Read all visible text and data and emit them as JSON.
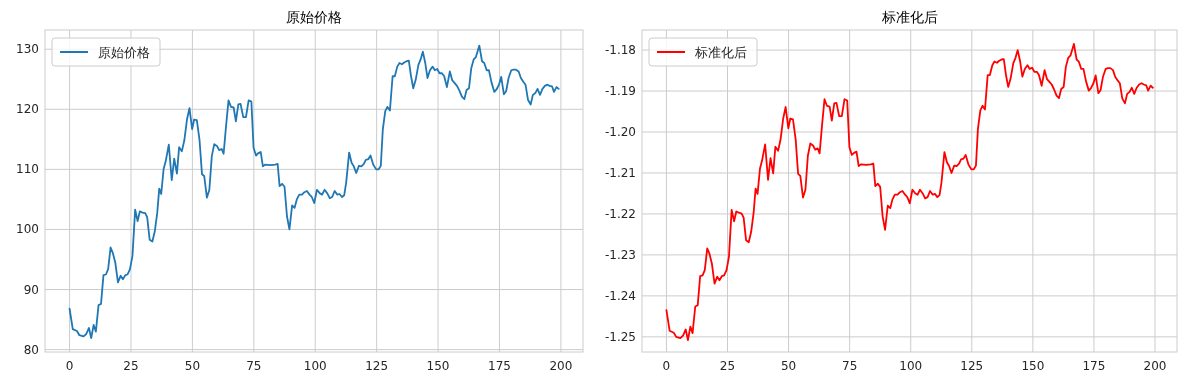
{
  "chart_data": [
    {
      "type": "line",
      "title": "原始价格",
      "x": [
        0,
        1.3,
        3,
        4,
        5.7,
        6.8,
        7.9,
        8.8,
        9.8,
        10.7,
        11.8,
        12.8,
        13.8,
        14.8,
        15.7,
        16.7,
        17.6,
        18.6,
        19.7,
        20.8,
        21.7,
        22.7,
        23.6,
        24.6,
        25.6,
        26.7,
        27.7,
        28.6,
        29.7,
        30.8,
        31.6,
        32.6,
        33.7,
        34.7,
        35.7,
        36.5,
        37.3,
        38.3,
        39.1,
        40.4,
        41.6,
        42.6,
        43.7,
        44.6,
        45.7,
        46.7,
        47.8,
        48.8,
        49.9,
        50.7,
        51.8,
        52.9,
        53.9,
        54.8,
        55.9,
        56.9,
        57.9,
        58.9,
        60.0,
        60.9,
        61.9,
        62.7,
        63.7,
        64.7,
        65.7,
        66.8,
        67.7,
        68.7,
        69.6,
        70.7,
        71.8,
        72.9,
        74.0,
        74.9,
        75.9,
        76.8,
        77.8,
        78.7,
        79.7,
        81.7,
        83.7,
        84.7,
        85.5,
        86.5,
        87.5,
        88.5,
        89.5,
        90.6,
        91.6,
        92.5,
        93.5,
        94.6,
        95.6,
        96.6,
        97.7,
        98.6,
        99.6,
        100.7,
        101.9,
        102.8,
        103.8,
        104.9,
        105.9,
        106.9,
        107.9,
        109.0,
        109.9,
        110.9,
        111.8,
        112.6,
        113.8,
        114.8,
        115.7,
        116.7,
        117.8,
        118.8,
        119.8,
        120.6,
        121.6,
        122.5,
        123.6,
        124.8,
        125.8,
        126.7,
        127.5,
        128.5,
        129.4,
        130.4,
        131.5,
        132.4,
        133.4,
        134.3,
        135.3,
        136.2,
        137.2,
        138.1,
        139.0,
        139.9,
        140.9,
        142.0,
        142.9,
        143.8,
        144.8,
        145.7,
        146.7,
        147.8,
        148.7,
        149.7,
        150.6,
        151.6,
        152.5,
        153.6,
        154.8,
        155.8,
        156.7,
        157.7,
        158.6,
        159.7,
        160.7,
        161.6,
        162.6,
        163.5,
        164.5,
        165.4,
        166.8,
        167.9,
        168.8,
        169.8,
        170.7,
        171.8,
        172.9,
        173.8,
        174.8,
        175.7,
        176.8,
        177.7,
        178.7,
        179.8,
        180.7,
        181.7,
        182.8,
        183.7,
        184.7,
        185.6,
        186.6,
        187.7,
        188.6,
        189.6,
        190.5,
        191.5,
        192.5,
        193.5,
        194.5,
        195.4,
        196.4,
        197.2,
        198.2,
        199.1
      ],
      "series": [
        {
          "name": "原始价格",
          "color": "#1f77b4",
          "values": [
            86.8,
            83.4,
            83.1,
            82.4,
            82.2,
            82.6,
            83.6,
            81.9,
            84.1,
            83.0,
            87.4,
            87.6,
            92.4,
            92.5,
            93.4,
            97.0,
            96.1,
            94.5,
            91.2,
            92.3,
            91.7,
            92.4,
            92.5,
            93.4,
            95.6,
            103.3,
            101.4,
            103.0,
            102.8,
            102.7,
            102.0,
            98.3,
            98.0,
            99.7,
            102.8,
            106.8,
            105.9,
            110.1,
            111.3,
            114.1,
            108.2,
            111.8,
            109.3,
            113.7,
            113.0,
            114.8,
            118.3,
            120.2,
            116.7,
            118.3,
            118.2,
            114.9,
            109.2,
            108.9,
            105.3,
            106.6,
            112.2,
            114.2,
            113.9,
            113.2,
            113.4,
            112.6,
            117.2,
            121.5,
            120.4,
            120.3,
            118.0,
            120.8,
            120.9,
            118.7,
            118.7,
            121.5,
            121.3,
            113.6,
            112.3,
            112.7,
            112.9,
            110.5,
            110.8,
            110.7,
            110.8,
            110.9,
            107.2,
            107.6,
            107.1,
            102.2,
            100.0,
            104.0,
            103.6,
            105.0,
            105.8,
            105.8,
            106.2,
            106.4,
            105.8,
            105.4,
            104.4,
            106.6,
            106.0,
            105.8,
            106.6,
            106.0,
            105.2,
            105.4,
            106.4,
            105.8,
            105.9,
            105.4,
            105.7,
            107.8,
            112.8,
            111.1,
            110.5,
            109.4,
            110.6,
            110.5,
            110.9,
            111.6,
            111.7,
            112.3,
            110.8,
            110.0,
            110.0,
            110.6,
            116.6,
            119.7,
            120.4,
            119.8,
            125.5,
            125.5,
            127.1,
            127.7,
            127.5,
            127.8,
            128.0,
            128.1,
            125.5,
            123.5,
            124.9,
            127.4,
            128.3,
            129.6,
            127.7,
            125.2,
            126.5,
            127.1,
            126.5,
            126.7,
            126.0,
            126.0,
            125.5,
            123.7,
            126.3,
            124.8,
            124.4,
            123.9,
            123.2,
            122.1,
            121.7,
            123.2,
            123.5,
            126.8,
            128.3,
            128.7,
            130.6,
            128.0,
            127.7,
            126.5,
            126.5,
            124.4,
            122.9,
            123.3,
            124.1,
            125.4,
            122.5,
            123.0,
            125.2,
            126.5,
            126.6,
            126.6,
            126.3,
            125.2,
            124.6,
            124.1,
            121.6,
            120.8,
            122.4,
            122.7,
            123.4,
            122.4,
            123.4,
            123.9,
            124.1,
            123.9,
            123.8,
            122.9,
            123.7,
            123.4
          ]
        }
      ],
      "xlim": [
        -10,
        209
      ],
      "xticks": [
        0,
        25,
        50,
        75,
        100,
        125,
        150,
        175,
        200
      ],
      "ylim": [
        79.6,
        133.2
      ],
      "yticks": [
        80,
        90,
        100,
        110,
        120,
        130
      ],
      "grid": true,
      "legend": "top left"
    },
    {
      "type": "line",
      "title": "标准化后",
      "x": [
        0,
        1.3,
        3,
        4,
        5.7,
        6.8,
        7.9,
        8.8,
        9.8,
        10.7,
        11.8,
        12.8,
        13.8,
        14.8,
        15.7,
        16.7,
        17.6,
        18.6,
        19.7,
        20.8,
        21.7,
        22.7,
        23.6,
        24.6,
        25.6,
        26.7,
        27.7,
        28.6,
        29.7,
        30.8,
        31.6,
        32.6,
        33.7,
        34.7,
        35.7,
        36.5,
        37.3,
        38.3,
        39.1,
        40.4,
        41.6,
        42.6,
        43.7,
        44.6,
        45.7,
        46.7,
        47.8,
        48.8,
        49.9,
        50.7,
        51.8,
        52.9,
        53.9,
        54.8,
        55.9,
        56.9,
        57.9,
        58.9,
        60.0,
        60.9,
        61.9,
        62.7,
        63.7,
        64.7,
        65.7,
        66.8,
        67.7,
        68.7,
        69.6,
        70.7,
        71.8,
        72.9,
        74.0,
        74.9,
        75.9,
        76.8,
        77.8,
        78.7,
        79.7,
        81.7,
        83.7,
        84.7,
        85.5,
        86.5,
        87.5,
        88.5,
        89.5,
        90.6,
        91.6,
        92.5,
        93.5,
        94.6,
        95.6,
        96.6,
        97.7,
        98.6,
        99.6,
        100.7,
        101.9,
        102.8,
        103.8,
        104.9,
        105.9,
        106.9,
        107.9,
        109.0,
        109.9,
        110.9,
        111.8,
        112.6,
        113.8,
        114.8,
        115.7,
        116.7,
        117.8,
        118.8,
        119.8,
        120.6,
        121.6,
        122.5,
        123.6,
        124.8,
        125.8,
        126.7,
        127.5,
        128.5,
        129.4,
        130.4,
        131.5,
        132.4,
        133.4,
        134.3,
        135.3,
        136.2,
        137.2,
        138.1,
        139.0,
        139.9,
        140.9,
        142.0,
        142.9,
        143.8,
        144.8,
        145.7,
        146.7,
        147.8,
        148.7,
        149.7,
        150.6,
        151.6,
        152.5,
        153.6,
        154.8,
        155.8,
        156.7,
        157.7,
        158.6,
        159.7,
        160.7,
        161.6,
        162.6,
        163.5,
        164.5,
        165.4,
        166.8,
        167.9,
        168.8,
        169.8,
        170.7,
        171.8,
        172.9,
        173.8,
        174.8,
        175.7,
        176.8,
        177.7,
        178.7,
        179.8,
        180.7,
        181.7,
        182.8,
        183.7,
        184.7,
        185.6,
        186.6,
        187.7,
        188.6,
        189.6,
        190.5,
        191.5,
        192.5,
        193.5,
        194.5,
        195.4,
        196.4,
        197.2,
        198.2,
        199.1
      ],
      "series": [
        {
          "name": "标准化后",
          "color": "#ff0000",
          "values": [
            -1.2435,
            -1.2485,
            -1.249,
            -1.25,
            -1.2503,
            -1.2497,
            -1.2482,
            -1.2508,
            -1.2475,
            -1.2491,
            -1.2426,
            -1.2423,
            -1.2352,
            -1.235,
            -1.2337,
            -1.2284,
            -1.2297,
            -1.2321,
            -1.237,
            -1.2353,
            -1.2362,
            -1.2352,
            -1.235,
            -1.2337,
            -1.2304,
            -1.219,
            -1.2218,
            -1.2194,
            -1.2197,
            -1.2199,
            -1.2209,
            -1.2264,
            -1.2269,
            -1.2243,
            -1.2197,
            -1.2138,
            -1.2151,
            -1.2089,
            -1.2071,
            -1.203,
            -1.2117,
            -1.2064,
            -1.2101,
            -1.2036,
            -1.2046,
            -1.2019,
            -1.1967,
            -1.1939,
            -1.1991,
            -1.1967,
            -1.1969,
            -1.2018,
            -1.2102,
            -1.2107,
            -1.216,
            -1.2141,
            -1.2058,
            -1.2028,
            -1.2033,
            -1.2043,
            -1.204,
            -1.2052,
            -1.1984,
            -1.192,
            -1.1936,
            -1.1938,
            -1.1972,
            -1.193,
            -1.1929,
            -1.1961,
            -1.1961,
            -1.192,
            -1.1923,
            -1.2037,
            -1.2056,
            -1.2051,
            -1.2048,
            -1.2083,
            -1.2079,
            -1.208,
            -1.2079,
            -1.2077,
            -1.2132,
            -1.2126,
            -1.2134,
            -1.2206,
            -1.2239,
            -1.218,
            -1.2186,
            -1.2165,
            -1.2153,
            -1.2153,
            -1.2147,
            -1.2144,
            -1.2153,
            -1.2159,
            -1.2174,
            -1.2141,
            -1.215,
            -1.2153,
            -1.2141,
            -1.215,
            -1.2162,
            -1.2159,
            -1.2144,
            -1.2153,
            -1.2151,
            -1.2159,
            -1.2154,
            -1.2123,
            -1.2049,
            -1.2074,
            -1.2083,
            -1.21,
            -1.2082,
            -1.2083,
            -1.2077,
            -1.2067,
            -1.2065,
            -1.2056,
            -1.2079,
            -1.2091,
            -1.2091,
            -1.2082,
            -1.1993,
            -1.1947,
            -1.1936,
            -1.1945,
            -1.1861,
            -1.1861,
            -1.1837,
            -1.1828,
            -1.1831,
            -1.1826,
            -1.1823,
            -1.1822,
            -1.1861,
            -1.189,
            -1.1869,
            -1.1832,
            -1.1819,
            -1.18,
            -1.1828,
            -1.1865,
            -1.1846,
            -1.1837,
            -1.1846,
            -1.1843,
            -1.1853,
            -1.1853,
            -1.1861,
            -1.1887,
            -1.1849,
            -1.1871,
            -1.1877,
            -1.1884,
            -1.1895,
            -1.1911,
            -1.1917,
            -1.1895,
            -1.189,
            -1.1841,
            -1.1819,
            -1.1813,
            -1.1785,
            -1.1823,
            -1.1828,
            -1.1846,
            -1.1846,
            -1.1877,
            -1.1899,
            -1.1893,
            -1.1881,
            -1.1862,
            -1.1905,
            -1.1898,
            -1.1865,
            -1.1846,
            -1.1844,
            -1.1844,
            -1.1849,
            -1.1865,
            -1.1874,
            -1.1881,
            -1.1918,
            -1.193,
            -1.1907,
            -1.1902,
            -1.1892,
            -1.1907,
            -1.1892,
            -1.1884,
            -1.1881,
            -1.1884,
            -1.1886,
            -1.1899,
            -1.1887,
            -1.1892
          ]
        }
      ],
      "xlim": [
        -10,
        209
      ],
      "xticks": [
        0,
        25,
        50,
        75,
        100,
        125,
        150,
        175,
        200
      ],
      "ylim": [
        -1.2537,
        -1.1751
      ],
      "yticks": [
        {
          "value": -1.25,
          "label": "-1.25"
        },
        {
          "value": -1.24,
          "label": "-1.24"
        },
        {
          "value": -1.23,
          "label": "-1.23"
        },
        {
          "value": -1.22,
          "label": "-1.22"
        },
        {
          "value": -1.21,
          "label": "-1.21"
        },
        {
          "value": -1.2,
          "label": "-1.20"
        },
        {
          "value": -1.19,
          "label": "-1.19"
        },
        {
          "value": -1.18,
          "label": "-1.18"
        }
      ],
      "grid": true,
      "legend": "top left"
    }
  ]
}
